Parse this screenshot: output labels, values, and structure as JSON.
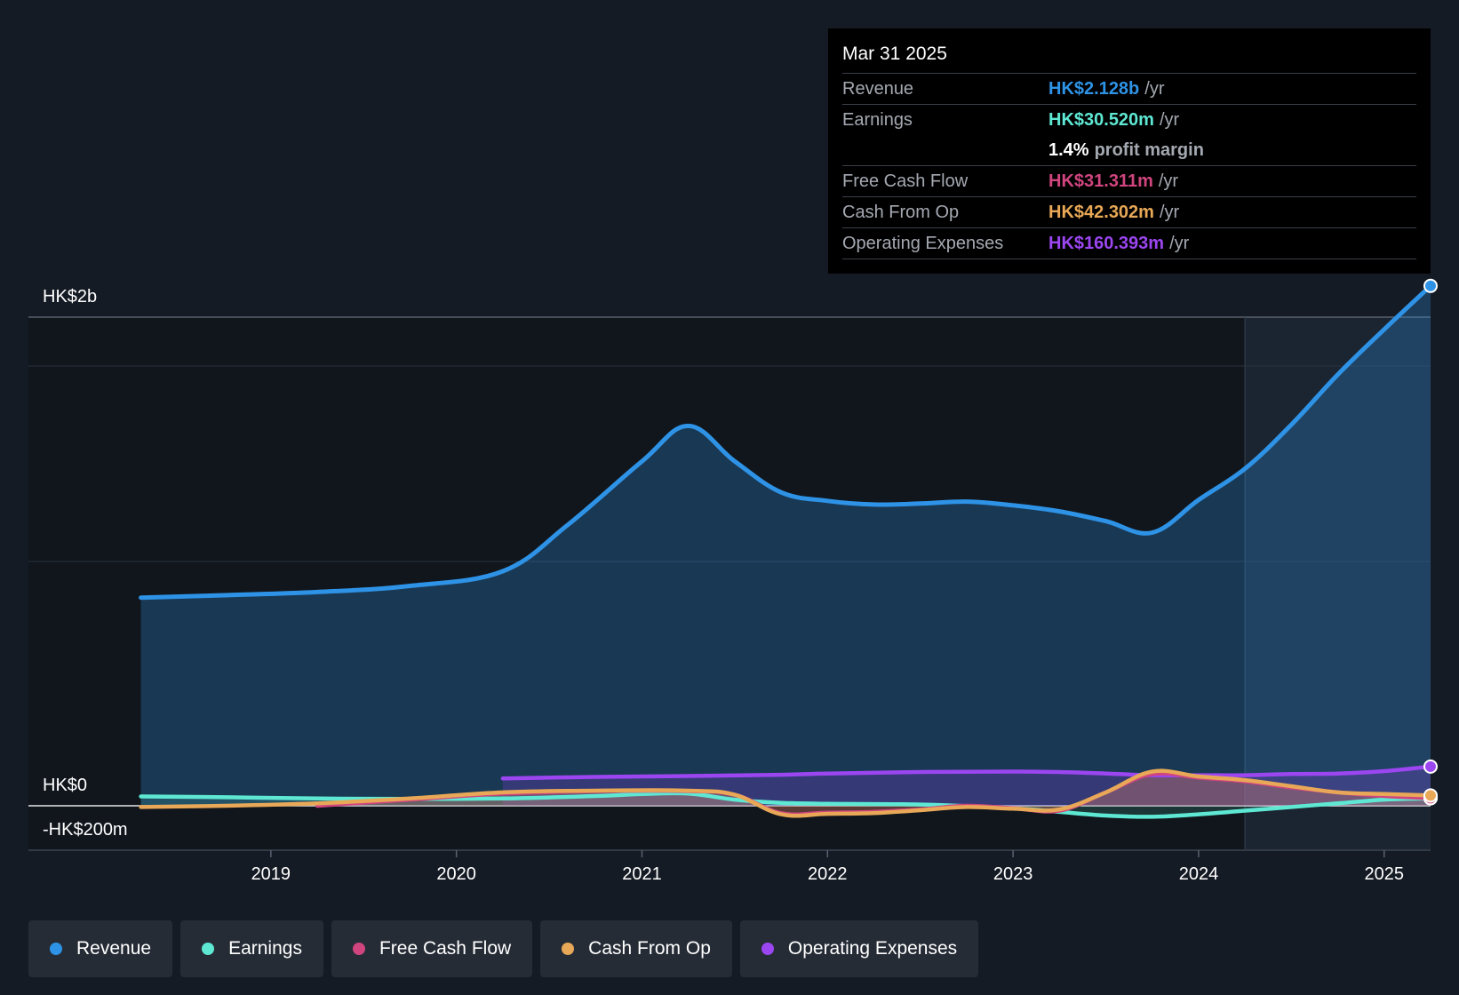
{
  "tooltip": {
    "date": "Mar 31 2025",
    "rows": {
      "revenue": {
        "label": "Revenue",
        "value": "HK$2.128b",
        "unit": "/yr"
      },
      "earnings": {
        "label": "Earnings",
        "value": "HK$30.520m",
        "unit": "/yr"
      },
      "margin": {
        "value": "1.4%",
        "text": "profit margin"
      },
      "fcf": {
        "label": "Free Cash Flow",
        "value": "HK$31.311m",
        "unit": "/yr"
      },
      "cfo": {
        "label": "Cash From Op",
        "value": "HK$42.302m",
        "unit": "/yr"
      },
      "opex": {
        "label": "Operating Expenses",
        "value": "HK$160.393m",
        "unit": "/yr"
      }
    }
  },
  "legend": [
    {
      "name": "Revenue",
      "color": "#2e93e6"
    },
    {
      "name": "Earnings",
      "color": "#5ee8d3"
    },
    {
      "name": "Free Cash Flow",
      "color": "#d0457e"
    },
    {
      "name": "Cash From Op",
      "color": "#e8a857"
    },
    {
      "name": "Operating Expenses",
      "color": "#9b46f0"
    }
  ],
  "chart_data": {
    "type": "line",
    "y_axis_labels": {
      "top": "HK$2b",
      "zero": "HK$0",
      "bottom": "-HK$200m"
    },
    "x_tick_labels": [
      "2019",
      "2020",
      "2021",
      "2022",
      "2023",
      "2024",
      "2025"
    ],
    "x_ticks": [
      2019.0,
      2020.0,
      2021.0,
      2022.0,
      2023.0,
      2024.0,
      2025.0
    ],
    "xlim": [
      2018.0,
      2025.25
    ],
    "ylim": [
      -200,
      2200
    ],
    "y_unit": "HK$ millions",
    "highlight_start": 2024.25,
    "series": [
      {
        "name": "Revenue",
        "color": "#2e93e6",
        "fill": true,
        "points": [
          [
            2018.3,
            852
          ],
          [
            2018.75,
            862
          ],
          [
            2019.25,
            875
          ],
          [
            2019.75,
            900
          ],
          [
            2020.25,
            960
          ],
          [
            2020.6,
            1150
          ],
          [
            2021.0,
            1410
          ],
          [
            2021.25,
            1555
          ],
          [
            2021.5,
            1410
          ],
          [
            2021.75,
            1283
          ],
          [
            2022.0,
            1248
          ],
          [
            2022.25,
            1233
          ],
          [
            2022.5,
            1237
          ],
          [
            2022.75,
            1245
          ],
          [
            2023.0,
            1230
          ],
          [
            2023.25,
            1205
          ],
          [
            2023.5,
            1165
          ],
          [
            2023.75,
            1118
          ],
          [
            2024.0,
            1252
          ],
          [
            2024.25,
            1380
          ],
          [
            2024.5,
            1560
          ],
          [
            2024.75,
            1765
          ],
          [
            2025.0,
            1950
          ],
          [
            2025.25,
            2128
          ]
        ]
      },
      {
        "name": "Earnings",
        "color": "#5ee8d3",
        "points": [
          [
            2018.3,
            38
          ],
          [
            2018.75,
            35
          ],
          [
            2019.25,
            30
          ],
          [
            2019.75,
            28
          ],
          [
            2020.25,
            30
          ],
          [
            2020.75,
            40
          ],
          [
            2021.0,
            48
          ],
          [
            2021.25,
            50
          ],
          [
            2021.5,
            25
          ],
          [
            2021.75,
            12
          ],
          [
            2022.0,
            8
          ],
          [
            2022.5,
            5
          ],
          [
            2023.0,
            -10
          ],
          [
            2023.25,
            -25
          ],
          [
            2023.5,
            -40
          ],
          [
            2023.75,
            -45
          ],
          [
            2024.0,
            -35
          ],
          [
            2024.25,
            -20
          ],
          [
            2024.5,
            -5
          ],
          [
            2024.75,
            10
          ],
          [
            2025.0,
            25
          ],
          [
            2025.25,
            30.52
          ]
        ]
      },
      {
        "name": "Free Cash Flow",
        "color": "#d0457e",
        "points": [
          [
            2019.25,
            0
          ],
          [
            2019.75,
            25
          ],
          [
            2020.25,
            50
          ],
          [
            2020.75,
            60
          ],
          [
            2021.25,
            60
          ],
          [
            2021.5,
            45
          ],
          [
            2021.75,
            -30
          ],
          [
            2022.0,
            -28
          ],
          [
            2022.25,
            -25
          ],
          [
            2022.5,
            -15
          ],
          [
            2022.75,
            0
          ],
          [
            2023.0,
            -10
          ],
          [
            2023.25,
            -20
          ],
          [
            2023.5,
            55
          ],
          [
            2023.75,
            130
          ],
          [
            2024.0,
            115
          ],
          [
            2024.25,
            100
          ],
          [
            2024.5,
            75
          ],
          [
            2024.75,
            55
          ],
          [
            2025.0,
            40
          ],
          [
            2025.25,
            31.311
          ]
        ]
      },
      {
        "name": "Cash From Op",
        "color": "#e8a857",
        "points": [
          [
            2018.3,
            -5
          ],
          [
            2018.75,
            0
          ],
          [
            2019.25,
            10
          ],
          [
            2019.75,
            30
          ],
          [
            2020.25,
            55
          ],
          [
            2020.75,
            62
          ],
          [
            2021.25,
            62
          ],
          [
            2021.5,
            45
          ],
          [
            2021.75,
            -35
          ],
          [
            2022.0,
            -33
          ],
          [
            2022.25,
            -30
          ],
          [
            2022.5,
            -18
          ],
          [
            2022.75,
            -5
          ],
          [
            2023.0,
            -12
          ],
          [
            2023.25,
            -15
          ],
          [
            2023.5,
            55
          ],
          [
            2023.75,
            140
          ],
          [
            2024.0,
            120
          ],
          [
            2024.25,
            105
          ],
          [
            2024.5,
            80
          ],
          [
            2024.75,
            55
          ],
          [
            2025.0,
            48
          ],
          [
            2025.25,
            42.302
          ]
        ]
      },
      {
        "name": "Operating Expenses",
        "color": "#9b46f0",
        "points": [
          [
            2020.25,
            112
          ],
          [
            2020.75,
            118
          ],
          [
            2021.25,
            122
          ],
          [
            2021.75,
            127
          ],
          [
            2022.0,
            132
          ],
          [
            2022.5,
            138
          ],
          [
            2023.0,
            140
          ],
          [
            2023.25,
            138
          ],
          [
            2023.5,
            132
          ],
          [
            2023.75,
            125
          ],
          [
            2024.0,
            125
          ],
          [
            2024.25,
            125
          ],
          [
            2024.5,
            130
          ],
          [
            2024.75,
            132
          ],
          [
            2025.0,
            142
          ],
          [
            2025.25,
            160.393
          ]
        ]
      }
    ]
  }
}
